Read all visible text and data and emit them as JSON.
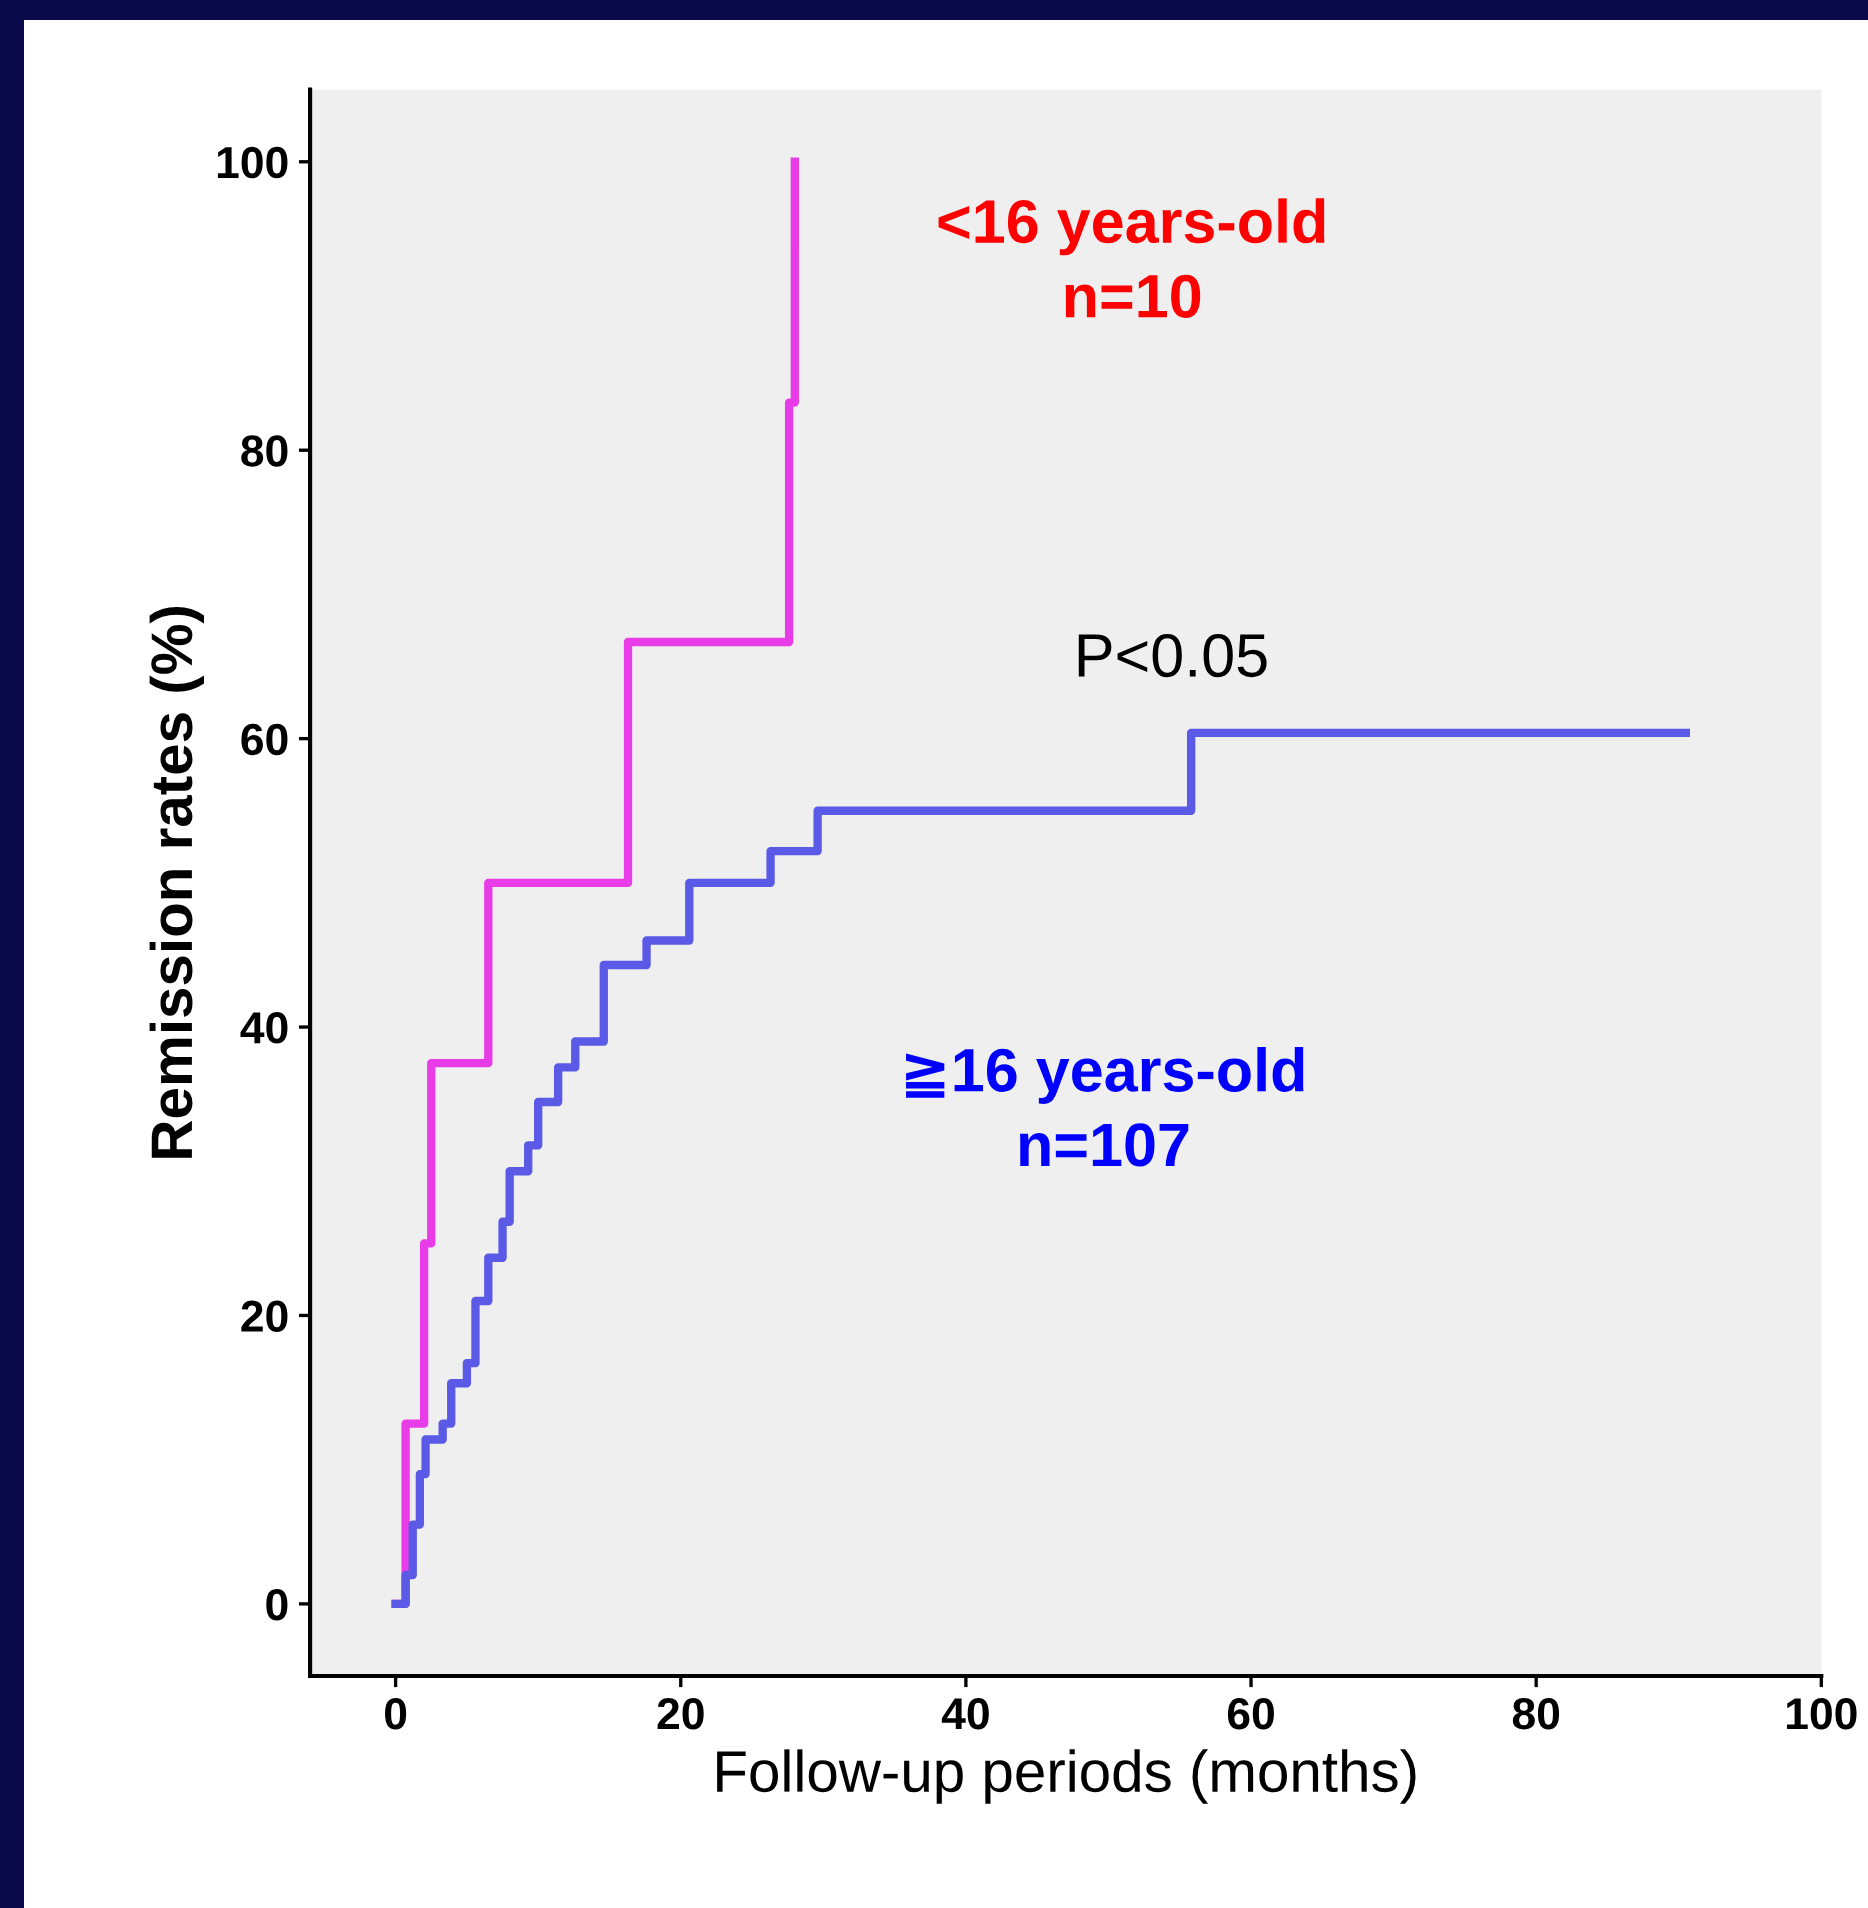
{
  "chart_data": {
    "type": "step",
    "xlabel": "Follow-up periods (months)",
    "ylabel": "Remission rates (%)",
    "series": [
      {
        "color": "#e83ce8",
        "x": [
          0,
          0.7,
          2,
          2.5,
          6.5,
          16.3,
          27.6,
          28
        ],
        "values": [
          0,
          12.5,
          25,
          37.5,
          50,
          66.7,
          83.3,
          100
        ]
      },
      {
        "color": "#5a5ae6",
        "x": [
          0,
          0.7,
          1.2,
          1.7,
          2.1,
          3.3,
          3.9,
          5,
          5.6,
          6.5,
          7.5,
          8,
          9.3,
          10,
          11.4,
          12.6,
          14.6,
          17.6,
          20.6,
          26.3,
          29.6,
          55.8,
          90.5
        ],
        "values": [
          0,
          2,
          5.5,
          9,
          11.4,
          12.5,
          15.3,
          16.7,
          21,
          24,
          26.5,
          30,
          31.8,
          34.8,
          37.2,
          39,
          44.3,
          46,
          50,
          52.2,
          55,
          60.4,
          60.4
        ]
      }
    ],
    "annotations": [
      "<16 years-old\nn=10",
      "≧16 years-old\nn=107",
      "P<0.05"
    ],
    "xlim": [
      -6,
      100
    ],
    "xticks": [
      0,
      20,
      40,
      60,
      80,
      100
    ],
    "ylim": [
      -5,
      105
    ],
    "yticks": [
      0,
      20,
      40,
      60,
      80,
      100
    ],
    "grid": false,
    "legend": false
  }
}
